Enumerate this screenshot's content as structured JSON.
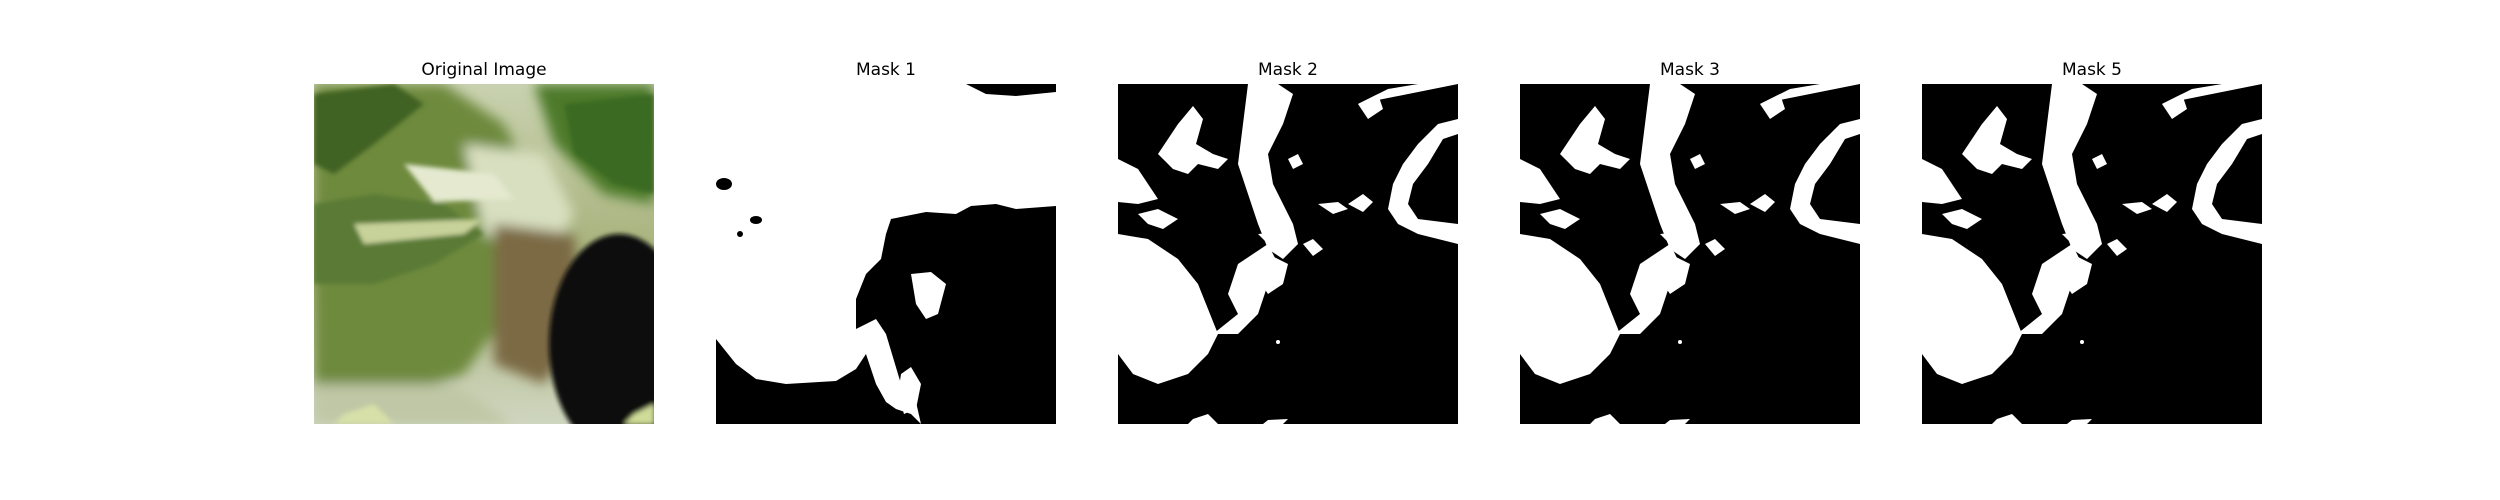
{
  "panels": [
    {
      "title": "Original Image",
      "kind": "photo"
    },
    {
      "title": "Mask 1",
      "kind": "mask-a"
    },
    {
      "title": "Mask 2",
      "kind": "mask-b"
    },
    {
      "title": "Mask 3",
      "kind": "mask-b"
    },
    {
      "title": "Mask 5",
      "kind": "mask-b"
    }
  ],
  "colors": {
    "mask_foreground": "#ffffff",
    "mask_background": "#000000",
    "leaf_dark": "#4a6b2a",
    "leaf_light": "#b9c98f",
    "stem": "#7a6a48",
    "dark_pot": "#0a0f08"
  }
}
